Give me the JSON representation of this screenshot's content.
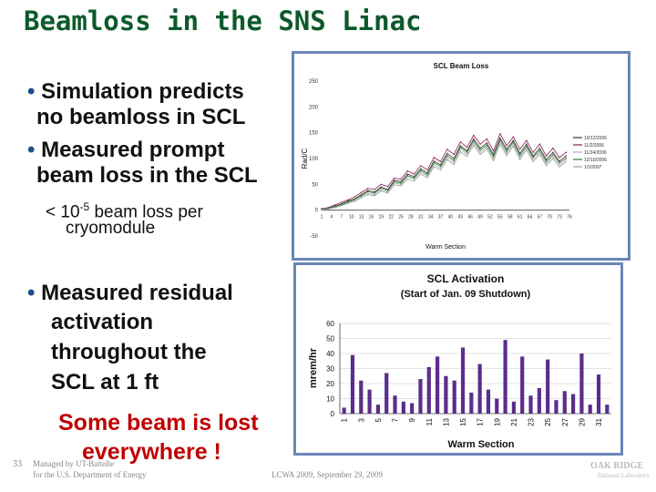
{
  "slide": {
    "title": "Beamloss in the SNS Linac",
    "bullet1_line1": "Simulation predicts",
    "bullet1_line2": "no beamloss in SCL",
    "bullet2_line1": "Measured prompt",
    "bullet2_line2": "beam loss in the SCL",
    "sub_prefix": "< 10",
    "sub_exp": "-5",
    "sub_suffix": " beam loss per",
    "sub_line2": "cryomodule",
    "bullet3_line1": "Measured residual",
    "bullet3_line2": "activation",
    "bullet3_line3": "throughout the",
    "bullet3_line4": "SCL at 1 ft",
    "conclusion_line1": "Some beam is lost",
    "conclusion_line2": "everywhere !",
    "bullet_glyph": "•",
    "slide_number": "33",
    "footer_managed_line1": "Managed by UT-Battelle",
    "footer_managed_line2": "for the U.S. Department of Energy",
    "footer_center": "LCWA 2009, September 29, 2009",
    "logo_text_line1": "OAK RIDGE",
    "logo_text_line2": "National Laboratory"
  },
  "chart_data": [
    {
      "type": "line",
      "title": "SCL Beam Loss",
      "xlabel": "Warm Section",
      "ylabel": "Rad/C",
      "ylim": [
        -50,
        250
      ],
      "yticks": [
        250,
        200,
        150,
        100,
        50,
        0,
        -50
      ],
      "ytick_labels": [
        "250",
        "200",
        "150",
        "100",
        "50",
        "0",
        "-50"
      ],
      "xtick_labels": [
        "1",
        "4",
        "7",
        "10",
        "13",
        "16",
        "19",
        "22",
        "25",
        "28",
        "31",
        "34",
        "37",
        "40",
        "43",
        "46",
        "49",
        "52",
        "55",
        "58",
        "61",
        "64",
        "67",
        "70",
        "73",
        "76"
      ],
      "x": [
        1,
        3,
        5,
        7,
        9,
        11,
        13,
        15,
        17,
        19,
        21,
        23,
        25,
        27,
        29,
        31,
        33,
        35,
        37,
        39,
        41,
        43,
        45,
        47,
        49,
        51,
        53,
        55,
        57,
        59,
        61,
        63,
        65,
        67,
        69,
        71,
        73,
        75
      ],
      "legend_position": "right",
      "colors": [
        "#333333",
        "#8b1a5a",
        "#b0b0b0",
        "#2e7d32",
        "#9e9e9e"
      ],
      "series": [
        {
          "name": "10/12/2006",
          "values": [
            2,
            4,
            8,
            12,
            18,
            22,
            30,
            38,
            35,
            45,
            40,
            58,
            55,
            70,
            65,
            80,
            72,
            95,
            88,
            110,
            100,
            125,
            115,
            138,
            120,
            130,
            108,
            140,
            118,
            135,
            110,
            128,
            105,
            120,
            98,
            112,
            95,
            105
          ]
        },
        {
          "name": "11/2/2006",
          "values": [
            3,
            5,
            10,
            15,
            20,
            26,
            34,
            42,
            40,
            50,
            46,
            62,
            60,
            76,
            70,
            86,
            78,
            102,
            94,
            118,
            108,
            132,
            122,
            145,
            128,
            138,
            115,
            148,
            125,
            142,
            118,
            135,
            112,
            128,
            105,
            120,
            102,
            112
          ]
        },
        {
          "name": "11/24/2006",
          "values": [
            1,
            3,
            6,
            10,
            15,
            19,
            26,
            33,
            30,
            40,
            35,
            52,
            50,
            64,
            60,
            74,
            66,
            88,
            82,
            102,
            92,
            118,
            108,
            130,
            112,
            122,
            100,
            132,
            110,
            128,
            102,
            120,
            98,
            112,
            90,
            104,
            88,
            98
          ]
        },
        {
          "name": "12/10/2006",
          "values": [
            2,
            4,
            7,
            11,
            16,
            21,
            28,
            36,
            33,
            43,
            38,
            55,
            52,
            67,
            62,
            77,
            69,
            92,
            85,
            106,
            96,
            122,
            112,
            134,
            116,
            126,
            104,
            136,
            114,
            132,
            106,
            124,
            102,
            116,
            94,
            108,
            92,
            101
          ]
        },
        {
          "name": "1/3/2007",
          "values": [
            0,
            2,
            5,
            9,
            13,
            17,
            24,
            30,
            28,
            37,
            33,
            49,
            47,
            60,
            56,
            70,
            63,
            84,
            78,
            98,
            88,
            113,
            104,
            126,
            108,
            118,
            96,
            128,
            106,
            124,
            98,
            116,
            94,
            108,
            86,
            100,
            84,
            94
          ]
        }
      ]
    },
    {
      "type": "bar",
      "title": "SCL Activation",
      "subtitle": "(Start of Jan. 09 Shutdown)",
      "xlabel": "Warm Section",
      "ylabel": "mrem/hr",
      "ylim": [
        0,
        60
      ],
      "yticks": [
        0,
        10,
        20,
        30,
        40,
        50,
        60
      ],
      "categories": [
        "1",
        "2",
        "3",
        "4",
        "5",
        "6",
        "7",
        "8",
        "9",
        "10",
        "11",
        "12",
        "13",
        "14",
        "15",
        "16",
        "17",
        "18",
        "19",
        "20",
        "21",
        "22",
        "23",
        "24",
        "25",
        "26",
        "27",
        "28",
        "29",
        "30",
        "31",
        "32"
      ],
      "xtick_labels": [
        "1",
        "3",
        "5",
        "7",
        "9",
        "11",
        "13",
        "15",
        "17",
        "19",
        "21",
        "23",
        "25",
        "27",
        "29",
        "31"
      ],
      "values": [
        4,
        39,
        22,
        16,
        6,
        27,
        12,
        8,
        7,
        23,
        31,
        38,
        25,
        22,
        44,
        14,
        33,
        16,
        10,
        49,
        8,
        38,
        12,
        17,
        36,
        9,
        15,
        13,
        40,
        6,
        26,
        6
      ],
      "bar_color": "#5b2d8c",
      "grid": "horizontal"
    }
  ]
}
